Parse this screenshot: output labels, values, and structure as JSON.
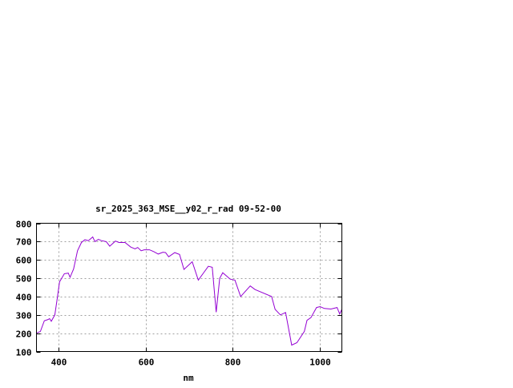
{
  "chart_data": {
    "type": "line",
    "title": "sr_2025_363_MSE__y02_r_rad 09-52-00",
    "xlabel": "nm",
    "ylabel": "",
    "xlim": [
      350,
      1050
    ],
    "ylim": [
      100,
      800
    ],
    "xticks": [
      400,
      600,
      800,
      1000
    ],
    "yticks": [
      100,
      200,
      300,
      400,
      500,
      600,
      700,
      800
    ],
    "grid": true,
    "line_color": "#9400d3",
    "series": [
      {
        "x": [
          350,
          359,
          368,
          377,
          380,
          384,
          392,
          397,
          403,
          414,
          423,
          427,
          435,
          444,
          453,
          461,
          469,
          479,
          484,
          492,
          499,
          510,
          518,
          531,
          539,
          553,
          566,
          576,
          582,
          590,
          597,
          609,
          619,
          629,
          640,
          646,
          653,
          667,
          678,
          688,
          707,
          721,
          744,
          753,
          762,
          770,
          777,
          794,
          805,
          818,
          840,
          851,
          889,
          897,
          909,
          921,
          935,
          947,
          964,
          970,
          979,
          992,
          1000,
          1010,
          1025,
          1039,
          1045,
          1050
        ],
        "y": [
          200,
          210,
          268,
          275,
          280,
          265,
          300,
          380,
          480,
          525,
          528,
          505,
          550,
          650,
          695,
          710,
          705,
          725,
          700,
          712,
          705,
          700,
          675,
          703,
          695,
          695,
          670,
          660,
          668,
          650,
          655,
          655,
          645,
          632,
          642,
          640,
          617,
          640,
          630,
          548,
          590,
          490,
          565,
          560,
          315,
          500,
          530,
          495,
          490,
          400,
          458,
          438,
          400,
          330,
          300,
          313,
          135,
          148,
          210,
          270,
          285,
          340,
          345,
          335,
          332,
          340,
          305,
          330
        ]
      }
    ]
  }
}
